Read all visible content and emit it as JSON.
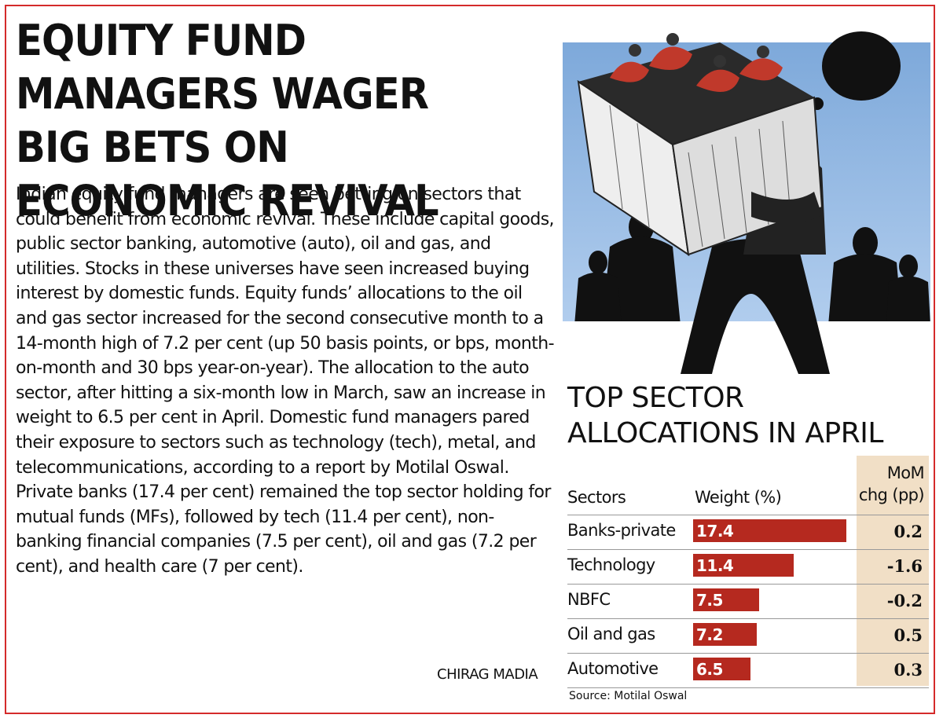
{
  "article": {
    "headline": "EQUITY FUND MANAGERS WAGER BIG BETS ON ECONOMIC REVIVAL",
    "body": "Indian equity fund managers are seen betting on sectors that could benefit from economic revival. These include capital goods, public sector banking, automotive (auto), oil and gas, and utilities. Stocks in these universes have seen increased buying interest by domestic funds. Equity funds’ allocations to the oil and gas sector increased for the second consecutive month to a 14-month high of 7.2 per cent (up 50 basis points, or bps, month-on-month and 30 bps year-on-year). The allocation to the auto sector, after hitting a six-month low in March, saw an increase in weight to 6.5 per cent in April. Domestic fund managers pared their exposure to sectors such as technology (tech), metal, and telecommunications, according to a report by Motilal Oswal. Private banks (17.4 per cent) remained the top sector holding for mutual funds (MFs), followed by tech (11.4 per cent), non-banking financial companies (7.5 per cent), oil and gas (7.2 per cent), and health care (7 per cent).",
    "byline": "CHIRAG MADIA"
  },
  "colors": {
    "frame": "#d42a2a",
    "bar": "#b5291f",
    "mom_column": "#f1dfc6"
  },
  "illustration": {
    "icon": "businessman-carrying-box-of-money-bags-illustration"
  },
  "chart_data": {
    "type": "bar",
    "title": "TOP SECTOR ALLOCATIONS IN APRIL",
    "column_headers": {
      "sectors": "Sectors",
      "weight": "Weight (%)",
      "mom": "MoM chg (pp)"
    },
    "categories": [
      "Banks-private",
      "Technology",
      "NBFC",
      "Oil and gas",
      "Automotive"
    ],
    "values": [
      17.4,
      11.4,
      7.5,
      7.2,
      6.5
    ],
    "value_labels": [
      "17.4",
      "11.4",
      "7.5",
      "7.2",
      "6.5"
    ],
    "mom_change": [
      "0.2",
      "-1.6",
      "-0.2",
      "0.5",
      "0.3"
    ],
    "xlim": [
      0,
      18.2
    ],
    "source": "Source: Motilal Oswal"
  }
}
